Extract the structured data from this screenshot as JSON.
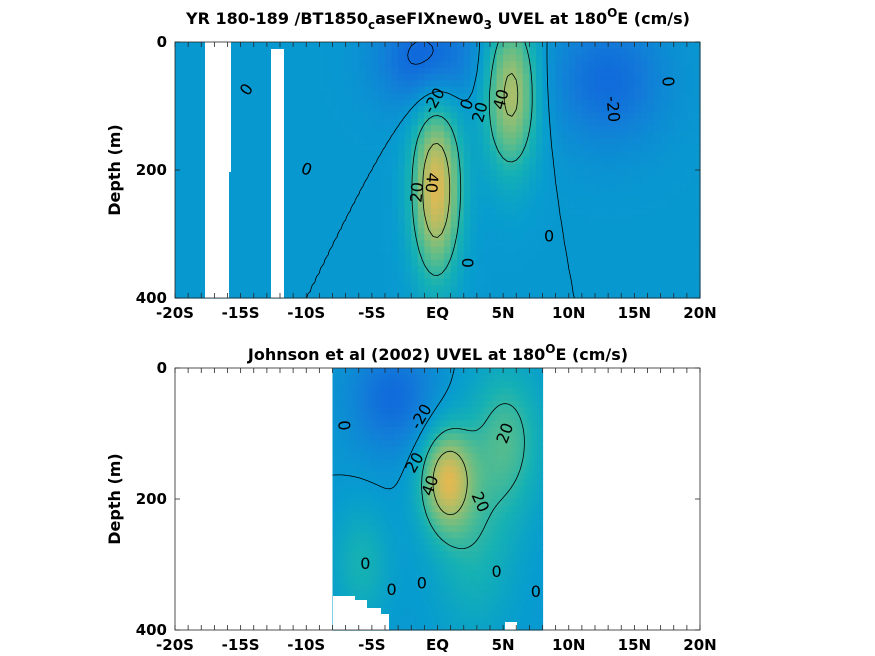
{
  "chart_data": [
    {
      "type": "heatmap",
      "title_main": "YR 180-189 /BT1850",
      "title_sub": "c",
      "title_mid": "aseFIXnew0",
      "title_sub2": "3",
      "title_rest": " UVEL at 180",
      "title_sup": "O",
      "title_end": "E (cm/s)",
      "ylabel": "Depth (m)",
      "xlim": [
        -20,
        20
      ],
      "ylim": [
        0,
        400
      ],
      "xticks": [
        -20,
        -19,
        -18,
        -17,
        -16,
        -15,
        -14,
        -13,
        -12,
        -11,
        -10,
        -9,
        -8,
        -7,
        -6,
        -5,
        -4,
        -3,
        -2,
        -1,
        0,
        1,
        2,
        3,
        4,
        5,
        6,
        7,
        8,
        9,
        10,
        11,
        12,
        13,
        14,
        15,
        16,
        17,
        18,
        19,
        20
      ],
      "xtick_labels": [
        {
          "x": -20,
          "label": "-20S"
        },
        {
          "x": -15,
          "label": "-15S"
        },
        {
          "x": -10,
          "label": "-10S"
        },
        {
          "x": -5,
          "label": "-5S"
        },
        {
          "x": 0,
          "label": "EQ"
        },
        {
          "x": 5,
          "label": "5N"
        },
        {
          "x": 10,
          "label": "10N"
        },
        {
          "x": 15,
          "label": "15N"
        },
        {
          "x": 20,
          "label": "20N"
        }
      ],
      "ytick_labels": [
        {
          "y": 0,
          "label": "0"
        },
        {
          "y": 200,
          "label": "200"
        },
        {
          "y": 400,
          "label": "400"
        }
      ],
      "data_extent_x": [
        -20,
        20
      ],
      "cores": [
        {
          "x": -0.1,
          "y": 230,
          "value": 55,
          "sx": 1.3,
          "sy": 95
        },
        {
          "x": 5.6,
          "y": 80,
          "value": 45,
          "sx": 1.4,
          "sy": 85
        },
        {
          "x": -0.8,
          "y": 25,
          "value": -25,
          "sx": 2.6,
          "sy": 55
        },
        {
          "x": 13,
          "y": 60,
          "value": -20,
          "sx": 3.0,
          "sy": 70
        }
      ],
      "contour_labels": [
        {
          "x": -14.5,
          "y": 75,
          "text": "0",
          "rot": -55
        },
        {
          "x": -10,
          "y": 200,
          "text": "0",
          "rot": 20
        },
        {
          "x": -0.2,
          "y": 92,
          "text": "-20",
          "rot": -60
        },
        {
          "x": 2.3,
          "y": 98,
          "text": "0",
          "rot": -70
        },
        {
          "x": 3.3,
          "y": 110,
          "text": "20",
          "rot": -75
        },
        {
          "x": 4.9,
          "y": 90,
          "text": "40",
          "rot": -75
        },
        {
          "x": -1.5,
          "y": 235,
          "text": "20",
          "rot": -85
        },
        {
          "x": -0.5,
          "y": 220,
          "text": "40",
          "rot": 95
        },
        {
          "x": 2.2,
          "y": 345,
          "text": "0",
          "rot": 90
        },
        {
          "x": 8.5,
          "y": 305,
          "text": "0",
          "rot": 0
        },
        {
          "x": 13.3,
          "y": 105,
          "text": "-20",
          "rot": 85
        },
        {
          "x": 17.5,
          "y": 62,
          "text": "0",
          "rot": 85
        }
      ]
    },
    {
      "type": "heatmap",
      "title_main": "Johnson et al (2002) UVEL at 180",
      "title_sup": "O",
      "title_end": "E (cm/s)",
      "ylabel": "Depth (m)",
      "xlim": [
        -20,
        20
      ],
      "ylim": [
        0,
        400
      ],
      "xticks": [
        -20,
        -19,
        -18,
        -17,
        -16,
        -15,
        -14,
        -13,
        -12,
        -11,
        -10,
        -9,
        -8,
        -7,
        -6,
        -5,
        -4,
        -3,
        -2,
        -1,
        0,
        1,
        2,
        3,
        4,
        5,
        6,
        7,
        8,
        9,
        10,
        11,
        12,
        13,
        14,
        15,
        16,
        17,
        18,
        19,
        20
      ],
      "xtick_labels": [
        {
          "x": -20,
          "label": "-20S"
        },
        {
          "x": -15,
          "label": "-15S"
        },
        {
          "x": -10,
          "label": "-10S"
        },
        {
          "x": -5,
          "label": "-5S"
        },
        {
          "x": 0,
          "label": "EQ"
        },
        {
          "x": 5,
          "label": "5N"
        },
        {
          "x": 10,
          "label": "10N"
        },
        {
          "x": 15,
          "label": "15N"
        },
        {
          "x": 20,
          "label": "20N"
        }
      ],
      "ytick_labels": [
        {
          "y": 0,
          "label": "0"
        },
        {
          "y": 200,
          "label": "200"
        },
        {
          "y": 400,
          "label": "400"
        }
      ],
      "data_extent_x": [
        -8,
        8
      ],
      "cores": [
        {
          "x": 0.7,
          "y": 170,
          "value": 50,
          "sx": 1.4,
          "sy": 55
        },
        {
          "x": -3.4,
          "y": 45,
          "value": -20,
          "sx": 2.3,
          "sy": 60
        },
        {
          "x": 5.2,
          "y": 110,
          "value": 25,
          "sx": 2.0,
          "sy": 80
        },
        {
          "x": -5.8,
          "y": 300,
          "value": 15,
          "sx": 1.5,
          "sy": 60
        },
        {
          "x": 2.8,
          "y": 280,
          "value": 15,
          "sx": 2.2,
          "sy": 90
        }
      ],
      "contour_labels": [
        {
          "x": -7.2,
          "y": 88,
          "text": "0",
          "rot": 85
        },
        {
          "x": -1.2,
          "y": 75,
          "text": "-20",
          "rot": -60
        },
        {
          "x": 5.2,
          "y": 100,
          "text": "20",
          "rot": -70
        },
        {
          "x": -1.7,
          "y": 145,
          "text": "20",
          "rot": -60
        },
        {
          "x": -0.5,
          "y": 180,
          "text": "40",
          "rot": -70
        },
        {
          "x": 3.2,
          "y": 205,
          "text": "20",
          "rot": 65
        },
        {
          "x": -5.5,
          "y": 300,
          "text": "0",
          "rot": 0
        },
        {
          "x": -3.5,
          "y": 340,
          "text": "0",
          "rot": 0
        },
        {
          "x": -1.2,
          "y": 330,
          "text": "0",
          "rot": 0
        },
        {
          "x": 4.5,
          "y": 312,
          "text": "0",
          "rot": 0
        },
        {
          "x": 7.5,
          "y": 343,
          "text": "0",
          "rot": 0
        }
      ]
    }
  ]
}
